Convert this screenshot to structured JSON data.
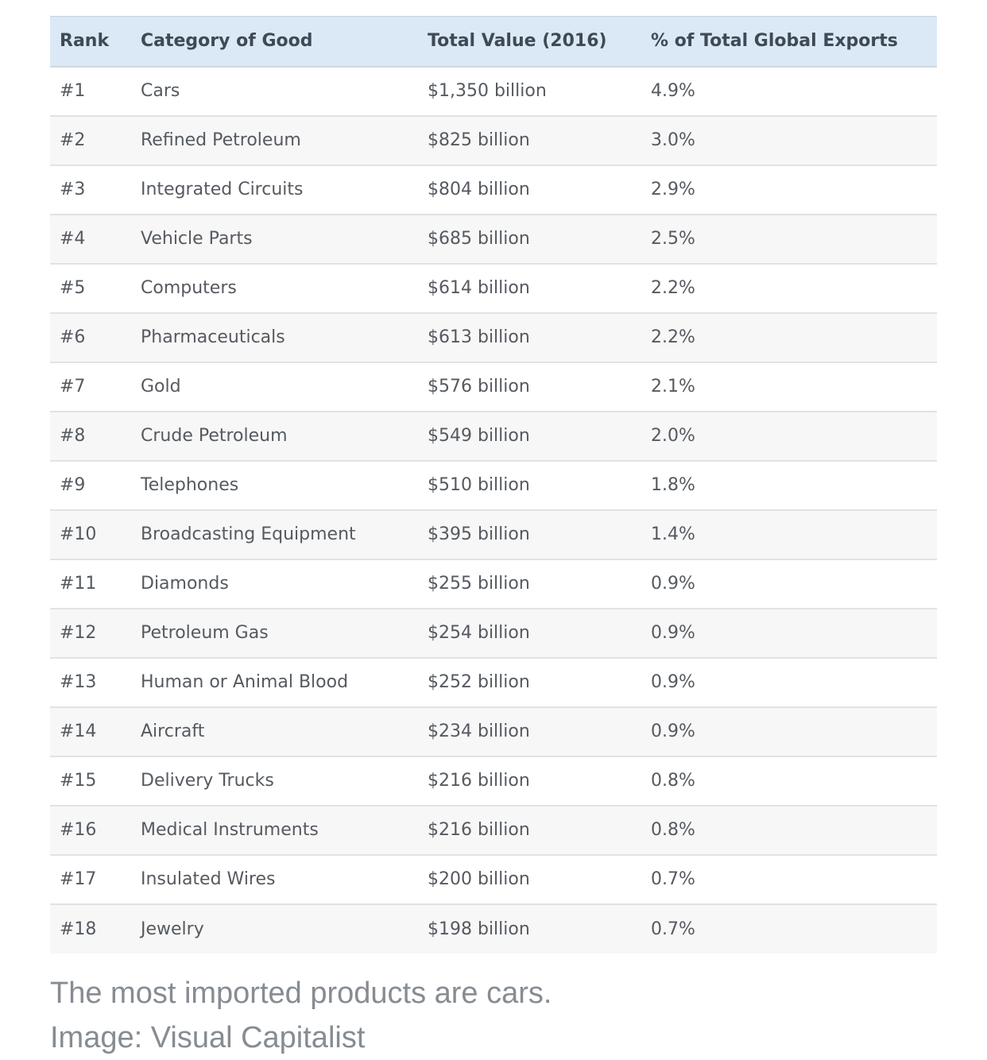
{
  "table": {
    "headers": [
      "Rank",
      "Category of Good",
      "Total Value (2016)",
      "% of Total Global Exports"
    ],
    "rows": [
      [
        "#1",
        "Cars",
        "$1,350 billion",
        "4.9%"
      ],
      [
        "#2",
        "Refined Petroleum",
        "$825 billion",
        "3.0%"
      ],
      [
        "#3",
        "Integrated Circuits",
        "$804 billion",
        "2.9%"
      ],
      [
        "#4",
        "Vehicle Parts",
        "$685 billion",
        "2.5%"
      ],
      [
        "#5",
        "Computers",
        "$614 billion",
        "2.2%"
      ],
      [
        "#6",
        "Pharmaceuticals",
        "$613 billion",
        "2.2%"
      ],
      [
        "#7",
        "Gold",
        "$576 billion",
        "2.1%"
      ],
      [
        "#8",
        "Crude Petroleum",
        "$549 billion",
        "2.0%"
      ],
      [
        "#9",
        "Telephones",
        "$510 billion",
        "1.8%"
      ],
      [
        "#10",
        "Broadcasting Equipment",
        "$395 billion",
        "1.4%"
      ],
      [
        "#11",
        "Diamonds",
        "$255 billion",
        "0.9%"
      ],
      [
        "#12",
        "Petroleum Gas",
        "$254 billion",
        "0.9%"
      ],
      [
        "#13",
        "Human or Animal Blood",
        "$252 billion",
        "0.9%"
      ],
      [
        "#14",
        "Aircraft",
        "$234 billion",
        "0.9%"
      ],
      [
        "#15",
        "Delivery Trucks",
        "$216 billion",
        "0.8%"
      ],
      [
        "#16",
        "Medical Instruments",
        "$216 billion",
        "0.8%"
      ],
      [
        "#17",
        "Insulated Wires",
        "$200 billion",
        "0.7%"
      ],
      [
        "#18",
        "Jewelry",
        "$198 billion",
        "0.7%"
      ]
    ]
  },
  "caption": {
    "line1": "The most imported products are cars.",
    "line2": "Image: Visual Capitalist"
  },
  "colors": {
    "header_bg": "#dbe9f6",
    "header_text": "#3f4a55",
    "row_alt_bg": "#f7f7f7",
    "cell_text": "#555a60",
    "caption_text": "#868c92"
  }
}
